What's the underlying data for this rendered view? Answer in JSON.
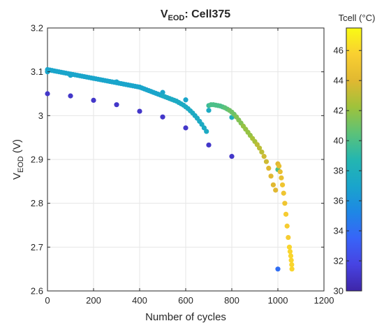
{
  "chart_data": {
    "type": "scatter",
    "title": "V",
    "title_subscript": "EOD",
    "title_suffix": ": Cell375",
    "xlabel": "Number of cycles",
    "ylabel": "V",
    "ylabel_subscript": "EOD",
    "ylabel_suffix": " (V)",
    "xlim": [
      0,
      1200
    ],
    "ylim": [
      2.6,
      3.2
    ],
    "x_ticks": [
      0,
      200,
      400,
      600,
      800,
      1000,
      1200
    ],
    "y_ticks": [
      2.6,
      2.7,
      2.8,
      2.9,
      3.0,
      3.1,
      3.2
    ],
    "x_tick_labels": [
      "0",
      "200",
      "400",
      "600",
      "800",
      "1000",
      "1200"
    ],
    "y_tick_labels": [
      "2.6",
      "2.7",
      "2.8",
      "2.9",
      "3",
      "3.1",
      "3.2"
    ],
    "grid": true,
    "colorbar": {
      "label": "Tcell (°C)",
      "colormap": "parula",
      "range": [
        30,
        47.5
      ],
      "ticks": [
        30,
        32,
        34,
        36,
        38,
        40,
        42,
        44,
        46
      ],
      "tick_labels": [
        "30",
        "32",
        "34",
        "36",
        "38",
        "40",
        "42",
        "44",
        "46"
      ]
    },
    "series": [
      {
        "x": [
          0,
          100,
          200,
          300,
          400,
          500,
          600,
          700,
          800,
          1000
        ],
        "y": [
          3.05,
          3.045,
          3.035,
          3.025,
          3.01,
          2.997,
          2.972,
          2.933,
          2.907,
          2.65
        ],
        "t": [
          31,
          31,
          31,
          31,
          31,
          31,
          31,
          31,
          31,
          34
        ]
      },
      {
        "x": [
          0,
          100,
          200,
          300,
          400,
          500,
          600,
          700,
          800,
          1000
        ],
        "y": [
          3.1,
          3.092,
          3.085,
          3.077,
          3.065,
          3.053,
          3.036,
          3.012,
          2.996,
          2.877
        ],
        "t": [
          37,
          37,
          37,
          37,
          37,
          37,
          37,
          37.5,
          38,
          40
        ]
      },
      {
        "x": [
          0,
          10,
          20,
          30,
          40,
          50,
          60,
          70,
          80,
          90,
          100,
          110,
          120,
          130,
          140,
          150,
          160,
          170,
          180,
          190,
          200,
          210,
          220,
          230,
          240,
          250,
          260,
          270,
          280,
          290,
          300,
          310,
          320,
          330,
          340,
          350,
          360,
          370,
          380,
          390,
          400,
          410,
          420,
          430,
          440,
          450,
          460,
          470,
          480,
          490,
          500,
          510,
          520,
          530,
          540,
          550,
          560,
          570,
          580,
          590,
          600,
          610,
          620,
          630,
          640,
          650,
          660,
          670,
          680,
          690,
          700,
          710,
          720,
          730,
          740,
          750,
          760,
          770,
          780,
          790,
          800,
          810,
          820,
          830,
          840,
          850,
          860,
          870,
          880,
          890,
          900,
          910,
          920,
          930,
          940,
          950,
          960,
          970,
          980,
          990,
          1000,
          1005,
          1010,
          1015,
          1020,
          1025,
          1030,
          1035,
          1040,
          1045,
          1050,
          1053,
          1056,
          1058,
          1060,
          1061
        ],
        "y": [
          3.105,
          3.104,
          3.103,
          3.102,
          3.101,
          3.1,
          3.099,
          3.098,
          3.097,
          3.096,
          3.095,
          3.094,
          3.093,
          3.092,
          3.091,
          3.09,
          3.089,
          3.088,
          3.087,
          3.086,
          3.085,
          3.084,
          3.083,
          3.082,
          3.081,
          3.08,
          3.079,
          3.078,
          3.077,
          3.076,
          3.075,
          3.074,
          3.073,
          3.072,
          3.071,
          3.07,
          3.069,
          3.068,
          3.067,
          3.066,
          3.065,
          3.063,
          3.061,
          3.059,
          3.057,
          3.055,
          3.053,
          3.051,
          3.049,
          3.047,
          3.045,
          3.043,
          3.041,
          3.039,
          3.037,
          3.035,
          3.033,
          3.03,
          3.027,
          3.024,
          3.02,
          3.016,
          3.011,
          3.006,
          3.0,
          2.994,
          2.987,
          2.98,
          2.972,
          2.964,
          3.023,
          3.025,
          3.025,
          3.024,
          3.023,
          3.022,
          3.02,
          3.018,
          3.015,
          3.012,
          3.008,
          3.003,
          2.997,
          2.99,
          2.983,
          2.976,
          2.969,
          2.962,
          2.955,
          2.948,
          2.941,
          2.934,
          2.926,
          2.917,
          2.907,
          2.895,
          2.88,
          2.862,
          2.842,
          2.83,
          2.89,
          2.885,
          2.872,
          2.858,
          2.842,
          2.823,
          2.8,
          2.775,
          2.748,
          2.722,
          2.7,
          2.69,
          2.68,
          2.67,
          2.66,
          2.65
        ],
        "t": [
          37,
          37,
          37,
          37,
          37,
          37,
          37,
          37,
          37,
          37,
          37,
          37,
          37,
          37,
          37,
          37,
          37,
          37,
          37,
          37,
          37,
          37,
          37,
          37,
          37,
          37,
          37,
          37,
          37,
          37,
          37,
          37,
          37,
          37,
          37,
          37,
          37,
          37,
          37,
          37,
          37,
          37,
          37,
          37,
          37,
          37,
          37,
          37,
          37,
          37,
          37.5,
          37.5,
          37.5,
          37.5,
          37.5,
          37.5,
          37.5,
          37.5,
          37.5,
          37.5,
          37.5,
          37.5,
          37.5,
          37.5,
          37.5,
          37.5,
          37.5,
          37.5,
          37.5,
          37.5,
          39.5,
          40,
          40,
          40,
          40,
          40,
          40,
          40.5,
          40.5,
          41,
          41,
          41,
          41.5,
          41.5,
          41.5,
          42,
          42,
          42,
          42,
          42.5,
          42.5,
          43,
          43,
          43,
          43.5,
          43.5,
          44,
          44,
          44,
          44,
          44,
          44.5,
          44.5,
          44.5,
          45,
          45,
          45,
          45.5,
          45.5,
          45.5,
          46,
          46,
          46,
          46,
          46,
          46
        ]
      }
    ]
  }
}
